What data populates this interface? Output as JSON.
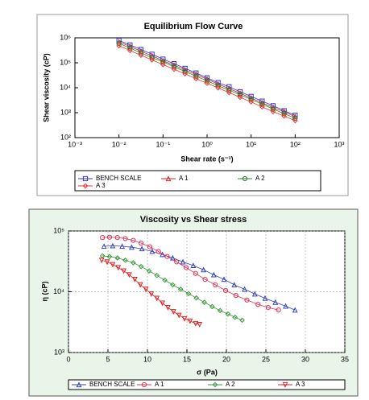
{
  "chart_data": [
    {
      "type": "line",
      "title": "Equilibrium Flow Curve",
      "x_label": "Shear rate (s⁻¹)",
      "y_label": "Shear viscosity (cP)",
      "xlog": true,
      "ylog": true,
      "grid": false,
      "xlim": [
        0.001,
        1000
      ],
      "ylim": [
        100,
        1000000
      ],
      "xticks": [
        {
          "value": 0.001,
          "label": "10⁻³"
        },
        {
          "value": 0.01,
          "label": "10⁻²"
        },
        {
          "value": 0.1,
          "label": "10⁻¹"
        },
        {
          "value": 1,
          "label": "10⁰"
        },
        {
          "value": 10,
          "label": "10¹"
        },
        {
          "value": 100,
          "label": "10²"
        },
        {
          "value": 1000,
          "label": "10³"
        }
      ],
      "yticks": [
        {
          "value": 100,
          "label": "10²"
        },
        {
          "value": 1000,
          "label": "10³"
        },
        {
          "value": 10000,
          "label": "10⁴"
        },
        {
          "value": 100000,
          "label": "10⁵"
        },
        {
          "value": 1000000,
          "label": "10⁶"
        }
      ],
      "x": [
        0.01,
        0.0178,
        0.0316,
        0.0562,
        0.1,
        0.178,
        0.316,
        0.562,
        1,
        1.78,
        3.16,
        5.62,
        10,
        17.8,
        31.6,
        56.2,
        100
      ],
      "series": [
        {
          "name": "BENCH SCALE",
          "color": "#3333cc",
          "marker": "square",
          "values": [
            790000,
            520000,
            340000,
            220000,
            140000,
            92000,
            60000,
            39000,
            25000,
            16000,
            11000,
            6900,
            4500,
            2900,
            1900,
            1200,
            790
          ]
        },
        {
          "name": "A 1",
          "color": "#dd2222",
          "marker": "triangle",
          "values": [
            690000,
            450000,
            290000,
            190000,
            120000,
            80000,
            52000,
            34000,
            22000,
            14000,
            9200,
            6000,
            3900,
            2500,
            1600,
            1100,
            690
          ]
        },
        {
          "name": "A 2",
          "color": "#228822",
          "marker": "circle",
          "values": [
            600000,
            390000,
            250000,
            160000,
            110000,
            69000,
            45000,
            29000,
            19000,
            12000,
            8000,
            5200,
            3400,
            2200,
            1400,
            920,
            600
          ]
        },
        {
          "name": "A 3",
          "color": "#ee3333",
          "marker": "diamond",
          "values": [
            480000,
            310000,
            200000,
            130000,
            85000,
            55000,
            36000,
            23000,
            15000,
            9800,
            6400,
            4100,
            2700,
            1700,
            1100,
            730,
            480
          ]
        }
      ]
    },
    {
      "type": "line",
      "title": "Viscosity vs Shear stress",
      "x_label": "σ (Pa)",
      "y_label": "η (cP)",
      "xlog": false,
      "ylog": true,
      "grid": true,
      "xlim": [
        0,
        35
      ],
      "ylim": [
        1000,
        100000
      ],
      "xticks": [
        0,
        5,
        10,
        15,
        20,
        25,
        30,
        35
      ],
      "yticks": [
        {
          "value": 1000,
          "label": "10³"
        },
        {
          "value": 10000,
          "label": "10⁴"
        },
        {
          "value": 100000,
          "label": "10⁵"
        }
      ],
      "series": [
        {
          "name": "BENCH SCALE",
          "color": "#3344bb",
          "marker": "triangle",
          "x": [
            4.5,
            5.6,
            6.8,
            8.0,
            9.3,
            10.6,
            11.9,
            13.2,
            14.5,
            15.8,
            17.1,
            18.4,
            19.7,
            21.0,
            22.3,
            23.6,
            24.9,
            26.2,
            27.5,
            28.7
          ],
          "values": [
            56000,
            57000,
            56000,
            54000,
            51000,
            46000,
            41000,
            36000,
            31000,
            27000,
            23000,
            19000,
            16000,
            13000,
            11000,
            9200,
            7800,
            6700,
            5800,
            5000
          ]
        },
        {
          "name": "A 1",
          "color": "#dd3355",
          "marker": "circle",
          "x": [
            4.3,
            5.2,
            6.2,
            7.2,
            8.2,
            9.2,
            10.3,
            11.4,
            12.5,
            13.7,
            14.9,
            16.1,
            17.3,
            18.6,
            19.9,
            21.2,
            22.6,
            24.0,
            25.3,
            26.6
          ],
          "values": [
            78000,
            79000,
            78000,
            75000,
            70000,
            63000,
            55000,
            46000,
            38000,
            31000,
            25000,
            20000,
            16000,
            13000,
            10500,
            8700,
            7300,
            6200,
            5500,
            5000
          ]
        },
        {
          "name": "A 2",
          "color": "#339933",
          "marker": "diamond",
          "x": [
            4.3,
            5.2,
            6.2,
            7.2,
            8.2,
            9.2,
            10.2,
            11.2,
            12.2,
            13.2,
            14.2,
            15.2,
            16.2,
            17.2,
            18.2,
            19.2,
            20.2,
            21.1,
            22.0
          ],
          "values": [
            39000,
            38000,
            36000,
            33000,
            30000,
            26000,
            22000,
            18500,
            15500,
            13000,
            11000,
            9300,
            7900,
            6700,
            5700,
            4900,
            4300,
            3800,
            3400
          ]
        },
        {
          "name": "A 3",
          "color": "#dd2222",
          "marker": "triangle-down",
          "x": [
            4.2,
            4.9,
            5.6,
            6.3,
            7.0,
            7.7,
            8.4,
            9.1,
            9.8,
            10.5,
            11.2,
            11.9,
            12.6,
            13.3,
            14.0,
            14.7,
            15.4,
            16.1,
            16.6
          ],
          "values": [
            33000,
            31000,
            28000,
            25000,
            22000,
            19000,
            16000,
            13000,
            11000,
            9200,
            7800,
            6500,
            5500,
            4700,
            4100,
            3600,
            3300,
            3000,
            2900
          ]
        }
      ]
    }
  ]
}
